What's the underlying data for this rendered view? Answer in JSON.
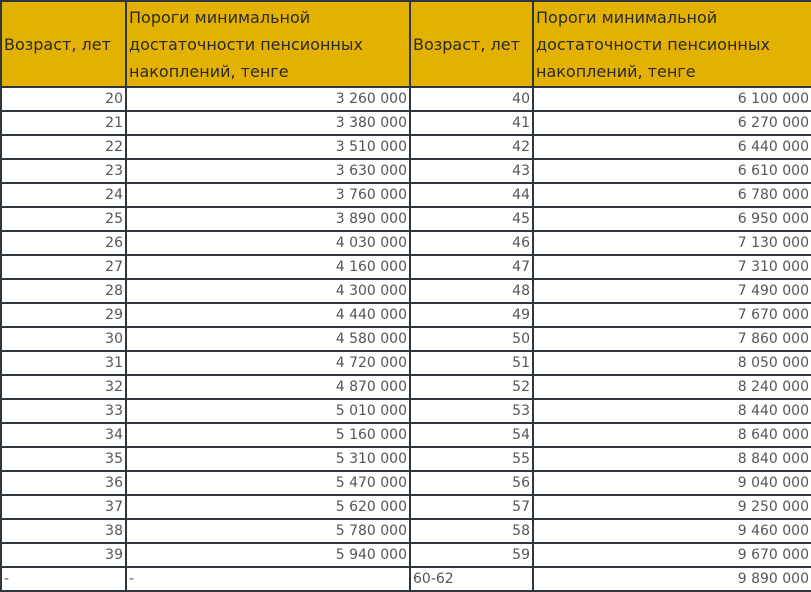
{
  "headers": [
    "Возраст, лет",
    "Пороги минимальной достаточности пенсионных накоплений, тенге",
    "Возраст, лет",
    "Пороги минимальной достаточности пенсионных накоплений, тенге"
  ],
  "header_color": "#e3b100",
  "rows": [
    [
      "20",
      "3 260 000",
      "40",
      "6 100 000"
    ],
    [
      "21",
      "3 380 000",
      "41",
      "6 270 000"
    ],
    [
      "22",
      "3 510 000",
      "42",
      "6 440 000"
    ],
    [
      "23",
      "3 630 000",
      "43",
      "6 610 000"
    ],
    [
      "24",
      "3 760 000",
      "44",
      "6 780 000"
    ],
    [
      "25",
      "3 890 000",
      "45",
      "6 950 000"
    ],
    [
      "26",
      "4 030 000",
      "46",
      "7 130 000"
    ],
    [
      "27",
      "4 160 000",
      "47",
      "7 310 000"
    ],
    [
      "28",
      "4 300 000",
      "48",
      "7 490 000"
    ],
    [
      "29",
      "4 440 000",
      "49",
      "7 670 000"
    ],
    [
      "30",
      "4 580 000",
      "50",
      "7 860 000"
    ],
    [
      "31",
      "4 720 000",
      "51",
      "8 050 000"
    ],
    [
      "32",
      "4 870 000",
      "52",
      "8 240 000"
    ],
    [
      "33",
      "5 010 000",
      "53",
      "8 440 000"
    ],
    [
      "34",
      "5 160 000",
      "54",
      "8 640 000"
    ],
    [
      "35",
      "5 310 000",
      "55",
      "8 840 000"
    ],
    [
      "36",
      "5 470 000",
      "56",
      "9 040 000"
    ],
    [
      "37",
      "5 620 000",
      "57",
      "9 250 000"
    ],
    [
      "38",
      "5 780 000",
      "58",
      "9 460 000"
    ],
    [
      "39",
      "5 940 000",
      "59",
      "9 670 000"
    ],
    [
      "-",
      "-",
      "60-62",
      "9 890 000"
    ]
  ]
}
